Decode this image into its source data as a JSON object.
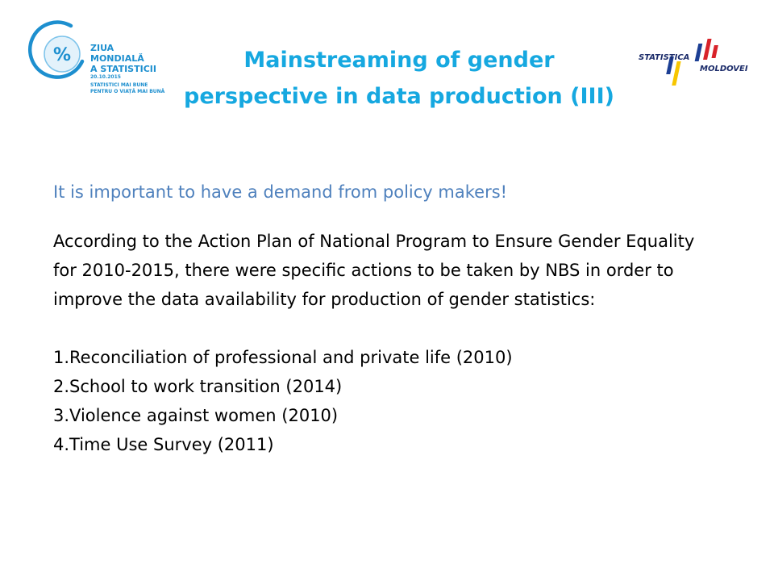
{
  "logo_left": {
    "symbol": "%",
    "line1": "ZIUA",
    "line2": "MONDIALĂ",
    "line3": "A STATISTICII",
    "date": "20.10.2015",
    "slogan1": "STATISTICI MAI BUNE",
    "slogan2": "PENTRU O VIAȚĂ MAI BUNĂ",
    "color": "#1d8fcf"
  },
  "title": {
    "line1": "Mainstreaming of gender",
    "line2": "perspective in data production (III)",
    "color": "#16a8e0"
  },
  "logo_right": {
    "word1": "STATISTICA",
    "word2": "MOLDOVEI",
    "colors": [
      "#1c3f94",
      "#f7c600",
      "#d8232a"
    ]
  },
  "subtitle": "It is important to have a demand from policy makers!",
  "paragraph": "According to the Action Plan of National Program to Ensure Gender Equality for 2010-2015, there were specific actions to be taken by NBS in order to improve the data availability for production of gender statistics:",
  "items": [
    "1.Reconciliation of professional  and private life (2010)",
    "2.School to work transition (2014)",
    "3.Violence against women (2010)",
    "4.Time Use Survey (2011)"
  ]
}
